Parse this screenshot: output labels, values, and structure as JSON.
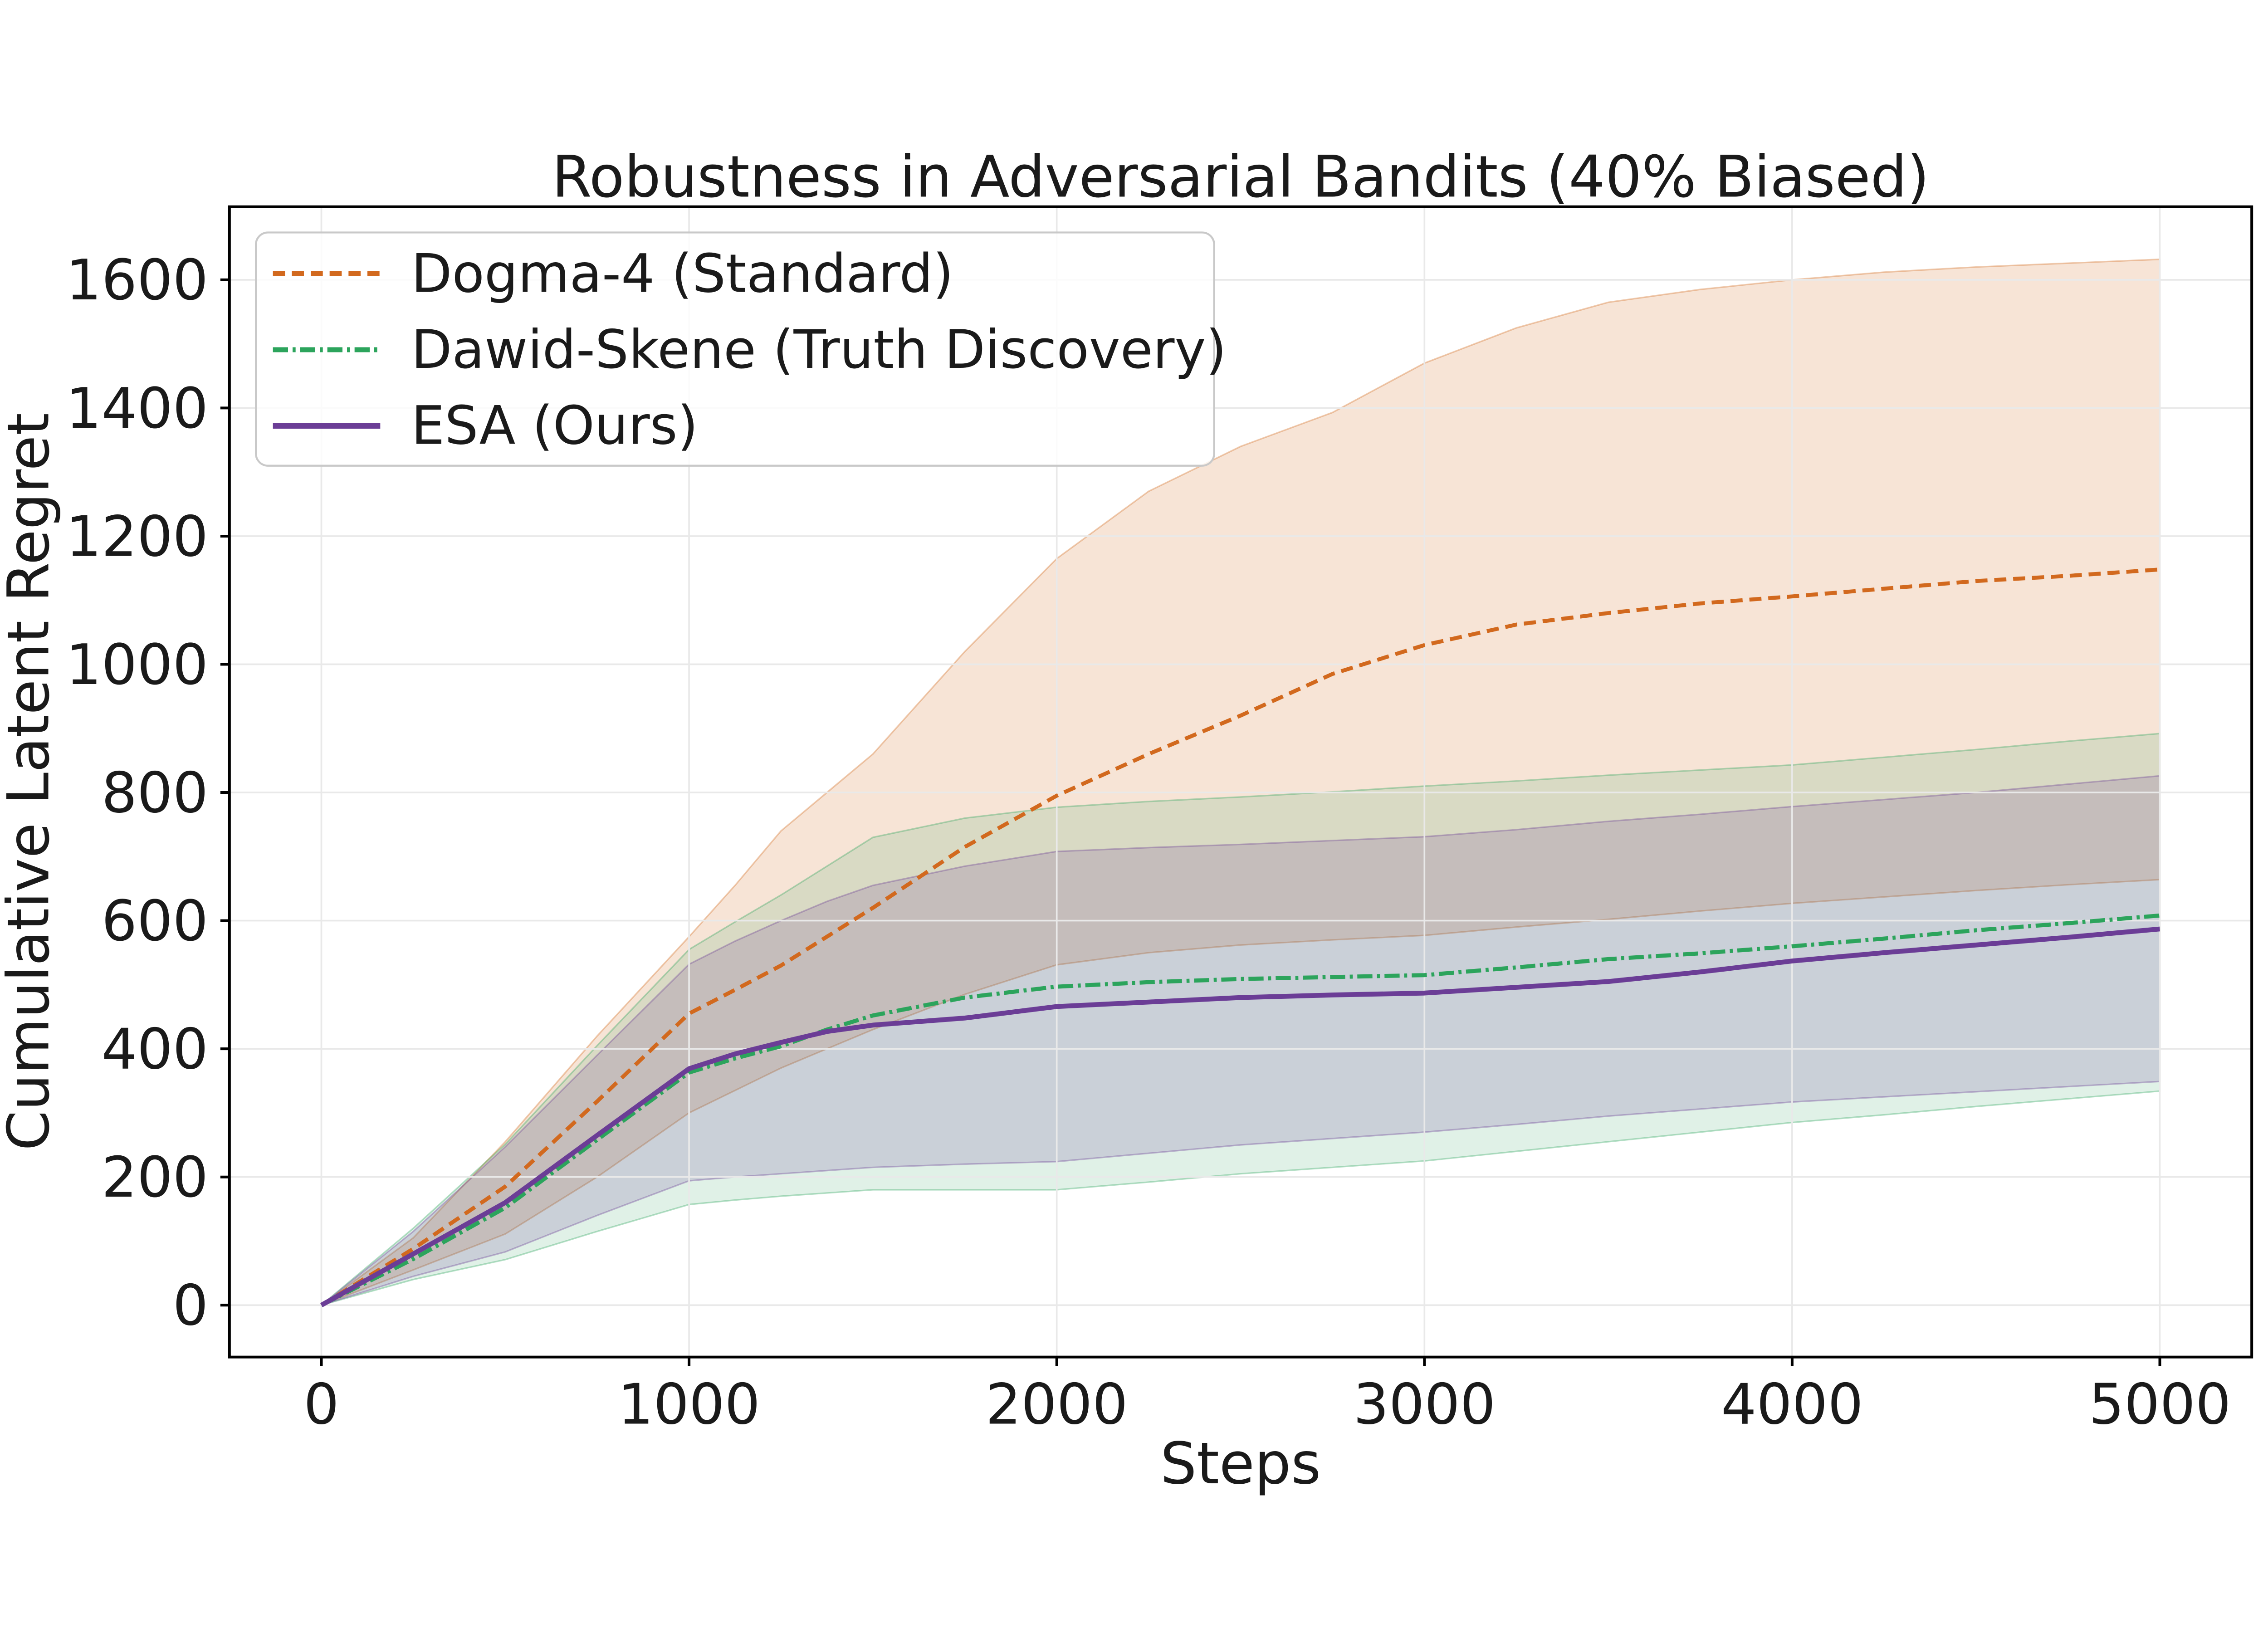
{
  "chart_data": {
    "type": "line",
    "title": "Robustness in Adversarial Bandits (40% Biased)",
    "xlabel": "Steps",
    "ylabel": "Cumulative Latent Regret",
    "x_ticks": [
      0,
      1000,
      2000,
      3000,
      4000,
      5000
    ],
    "y_ticks": [
      0,
      200,
      400,
      600,
      800,
      1000,
      1200,
      1400,
      1600
    ],
    "xlim": [
      -250,
      5250
    ],
    "ylim": [
      -81,
      1714
    ],
    "grid": true,
    "legend_position": "upper-left",
    "background_color": "#ffffff",
    "grid_color": "#e9e9e9",
    "spine_color": "#000000",
    "x": [
      0,
      250,
      500,
      750,
      1000,
      1125,
      1250,
      1375,
      1500,
      1750,
      2000,
      2250,
      2500,
      2750,
      3000,
      3250,
      3500,
      3750,
      4000,
      4250,
      4500,
      4750,
      5000
    ],
    "series": [
      {
        "name": "dogma-4",
        "legend_label": "Dogma-4 (Standard)",
        "color": "#d2691e",
        "line_style": "dashed",
        "line_width": 2.6,
        "values": [
          0,
          88,
          185,
          318,
          455,
          492,
          530,
          575,
          620,
          715,
          795,
          860,
          920,
          985,
          1030,
          1062,
          1080,
          1095,
          1106,
          1118,
          1130,
          1138,
          1148
        ],
        "band_lo": [
          0,
          55,
          111,
          200,
          300,
          335,
          370,
          400,
          430,
          485,
          531,
          550,
          562,
          570,
          577,
          590,
          602,
          615,
          627,
          637,
          647,
          656,
          664
        ],
        "band_hi": [
          0,
          105,
          255,
          420,
          575,
          655,
          740,
          800,
          860,
          1020,
          1165,
          1270,
          1340,
          1393,
          1470,
          1525,
          1565,
          1585,
          1600,
          1612,
          1620,
          1626,
          1632
        ],
        "band_alpha": 0.18
      },
      {
        "name": "dawid-skene",
        "legend_label": "Dawid-Skene (Truth Discovery)",
        "color": "#2ca45c",
        "line_style": "dash-dot",
        "line_width": 2.7,
        "values": [
          0,
          72,
          152,
          258,
          363,
          385,
          404,
          430,
          452,
          480,
          497,
          504,
          509,
          512,
          515,
          527,
          540,
          549,
          560,
          572,
          585,
          596,
          608
        ],
        "band_lo": [
          0,
          40,
          71,
          115,
          157,
          164,
          170,
          175,
          180,
          180,
          180,
          192,
          205,
          215,
          225,
          240,
          255,
          270,
          285,
          297,
          310,
          322,
          334
        ],
        "band_hi": [
          0,
          120,
          251,
          405,
          555,
          598,
          640,
          685,
          730,
          760,
          777,
          786,
          793,
          801,
          810,
          818,
          827,
          835,
          843,
          855,
          867,
          880,
          892
        ],
        "band_alpha": 0.15
      },
      {
        "name": "esa",
        "legend_label": "ESA (Ours)",
        "color": "#6b3d96",
        "line_style": "solid",
        "line_width": 3.2,
        "values": [
          0,
          80,
          160,
          265,
          369,
          392,
          410,
          427,
          437,
          448,
          466,
          473,
          480,
          484,
          487,
          496,
          505,
          520,
          537,
          550,
          562,
          574,
          587
        ],
        "band_lo": [
          0,
          45,
          83,
          140,
          194,
          200,
          205,
          210,
          215,
          220,
          224,
          237,
          250,
          260,
          270,
          282,
          295,
          306,
          317,
          325,
          333,
          341,
          349
        ],
        "band_hi": [
          0,
          115,
          247,
          390,
          532,
          568,
          600,
          630,
          655,
          685,
          708,
          714,
          719,
          725,
          731,
          742,
          755,
          766,
          778,
          789,
          800,
          813,
          826
        ],
        "band_alpha": 0.18
      }
    ]
  }
}
